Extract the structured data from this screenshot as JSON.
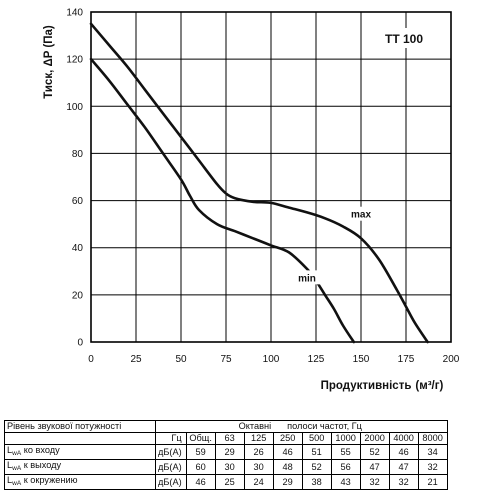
{
  "chart_data": {
    "type": "line",
    "title": "TT 100",
    "xlabel": "Продуктивність",
    "xlabel_unit": "(м³/г)",
    "ylabel": "Тиск, ΔP (Па)",
    "xlim": [
      0,
      200
    ],
    "ylim": [
      0,
      140
    ],
    "x_ticks": [
      "0",
      "25",
      "50",
      "75",
      "100",
      "125",
      "150",
      "175",
      "200"
    ],
    "y_ticks": [
      "0",
      "20",
      "40",
      "60",
      "80",
      "100",
      "120",
      "140"
    ],
    "grid": true,
    "series": [
      {
        "name": "max",
        "x": [
          0,
          10,
          20,
          30,
          40,
          50,
          60,
          70,
          75,
          80,
          90,
          100,
          110,
          120,
          130,
          140,
          150,
          160,
          170,
          175,
          180,
          187
        ],
        "y": [
          135,
          126,
          117,
          107,
          97,
          87,
          77,
          67,
          63,
          61,
          59.5,
          59,
          57,
          55,
          52.5,
          49,
          44,
          35,
          22,
          15,
          8,
          0
        ]
      },
      {
        "name": "min",
        "x": [
          0,
          10,
          20,
          30,
          40,
          50,
          55,
          60,
          70,
          80,
          90,
          100,
          110,
          120,
          125,
          130,
          135,
          140,
          146
        ],
        "y": [
          120,
          111,
          101,
          91,
          80,
          69,
          62,
          56,
          50,
          47,
          44,
          41,
          38,
          31,
          26,
          20,
          14,
          7,
          0
        ]
      }
    ]
  },
  "table": {
    "title": "Рівень звукової потужності",
    "octave_label": "Октавні",
    "bands_label": "полоси частот, Гц",
    "hz_label": "Гц",
    "headers": [
      "Общ.",
      "63",
      "125",
      "250",
      "500",
      "1000",
      "2000",
      "4000",
      "8000"
    ],
    "rows": [
      {
        "prefix": "L",
        "sub": "wA",
        "suffix": " ко входу",
        "unit": "дБ(A)",
        "values": [
          "59",
          "29",
          "26",
          "46",
          "51",
          "55",
          "52",
          "46",
          "34"
        ]
      },
      {
        "prefix": "L",
        "sub": "wA",
        "suffix": " к выходу",
        "unit": "дБ(A)",
        "values": [
          "60",
          "30",
          "30",
          "48",
          "52",
          "56",
          "47",
          "47",
          "32"
        ]
      },
      {
        "prefix": "L",
        "sub": "wA",
        "suffix": " к окружению",
        "unit": "дБ(A)",
        "values": [
          "46",
          "25",
          "24",
          "29",
          "38",
          "43",
          "32",
          "32",
          "21"
        ]
      }
    ]
  }
}
